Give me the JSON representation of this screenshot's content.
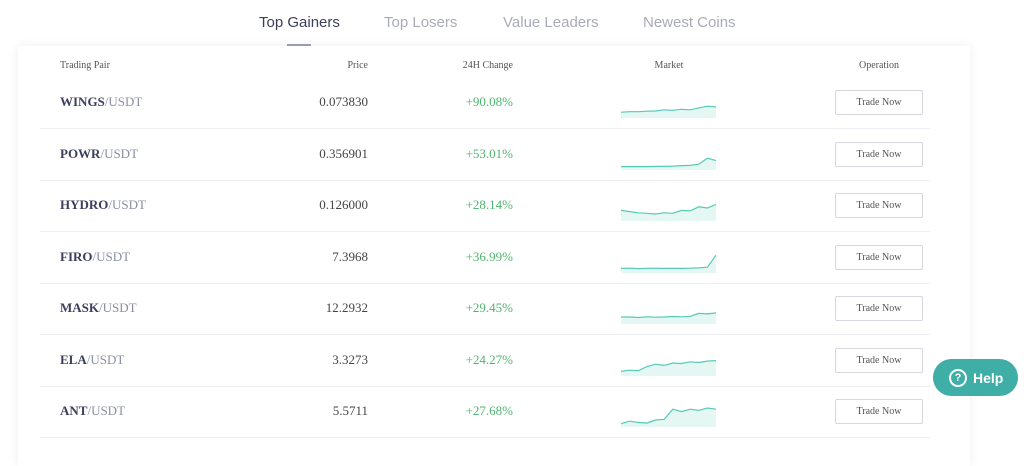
{
  "tabs": [
    {
      "label": "Top Gainers",
      "active": true
    },
    {
      "label": "Top Losers",
      "active": false
    },
    {
      "label": "Value Leaders",
      "active": false
    },
    {
      "label": "Newest Coins",
      "active": false
    }
  ],
  "table": {
    "columns": [
      "Trading Pair",
      "Price",
      "24H Change",
      "Market",
      "Operation"
    ],
    "rows": [
      {
        "base": "WINGS",
        "quote": "/USDT",
        "price": "0.073830",
        "change": "+90.08%",
        "market": [
          20,
          22,
          22,
          24,
          25,
          30,
          28,
          32,
          30,
          38,
          45,
          42
        ],
        "operation": "Trade Now"
      },
      {
        "base": "POWR",
        "quote": "/USDT",
        "price": "0.356901",
        "change": "+53.01%",
        "market": [
          10,
          10,
          10,
          10,
          11,
          11,
          12,
          14,
          15,
          20,
          45,
          35
        ],
        "operation": "Trade Now"
      },
      {
        "base": "HYDRO",
        "quote": "/USDT",
        "price": "0.126000",
        "change": "+28.14%",
        "market": [
          40,
          35,
          30,
          28,
          25,
          30,
          28,
          40,
          38,
          55,
          50,
          65
        ],
        "operation": "Trade Now"
      },
      {
        "base": "FIRO",
        "quote": "/USDT",
        "price": "7.3968",
        "change": "+36.99%",
        "market": [
          15,
          16,
          14,
          15,
          16,
          15,
          15,
          15,
          16,
          17,
          20,
          70
        ],
        "operation": "Trade Now"
      },
      {
        "base": "MASK",
        "quote": "/USDT",
        "price": "12.2932",
        "change": "+29.45%",
        "market": [
          25,
          25,
          23,
          26,
          24,
          25,
          27,
          26,
          28,
          40,
          38,
          42
        ],
        "operation": "Trade Now"
      },
      {
        "base": "ELA",
        "quote": "/USDT",
        "price": "3.3273",
        "change": "+24.27%",
        "market": [
          15,
          20,
          18,
          35,
          45,
          40,
          50,
          48,
          55,
          52,
          58,
          60
        ],
        "operation": "Trade Now"
      },
      {
        "base": "ANT",
        "quote": "/USDT",
        "price": "5.5711",
        "change": "+27.68%",
        "market": [
          10,
          20,
          15,
          12,
          25,
          28,
          70,
          60,
          70,
          65,
          75,
          70
        ],
        "operation": "Trade Now"
      }
    ]
  },
  "help": {
    "icon": "?",
    "label": "Help"
  }
}
